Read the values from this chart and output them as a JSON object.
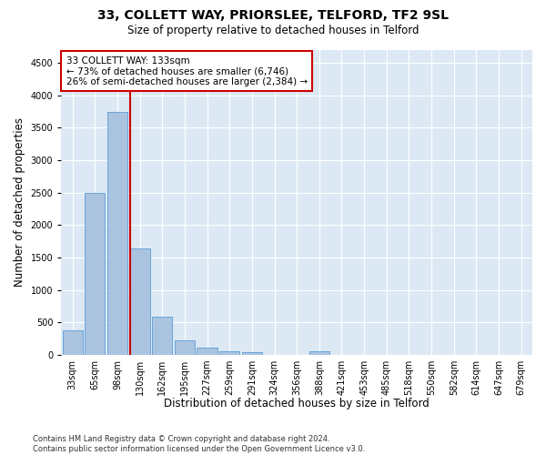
{
  "title": "33, COLLETT WAY, PRIORSLEE, TELFORD, TF2 9SL",
  "subtitle": "Size of property relative to detached houses in Telford",
  "xlabel": "Distribution of detached houses by size in Telford",
  "ylabel": "Number of detached properties",
  "bar_labels": [
    "33sqm",
    "65sqm",
    "98sqm",
    "130sqm",
    "162sqm",
    "195sqm",
    "227sqm",
    "259sqm",
    "291sqm",
    "324sqm",
    "356sqm",
    "388sqm",
    "421sqm",
    "453sqm",
    "485sqm",
    "518sqm",
    "550sqm",
    "582sqm",
    "614sqm",
    "647sqm",
    "679sqm"
  ],
  "bar_values": [
    370,
    2500,
    3750,
    1640,
    590,
    225,
    105,
    60,
    40,
    0,
    0,
    55,
    0,
    0,
    0,
    0,
    0,
    0,
    0,
    0,
    0
  ],
  "bar_color": "#aac4e0",
  "bar_edge_color": "#5b9bd5",
  "vline_color": "#cc0000",
  "annotation_text": "33 COLLETT WAY: 133sqm\n← 73% of detached houses are smaller (6,746)\n26% of semi-detached houses are larger (2,384) →",
  "annotation_box_color": "#ffffff",
  "annotation_box_edgecolor": "#cc0000",
  "ylim": [
    0,
    4700
  ],
  "yticks": [
    0,
    500,
    1000,
    1500,
    2000,
    2500,
    3000,
    3500,
    4000,
    4500
  ],
  "footer": "Contains HM Land Registry data © Crown copyright and database right 2024.\nContains public sector information licensed under the Open Government Licence v3.0.",
  "plot_bg_color": "#dce9f5",
  "title_fontsize": 10,
  "subtitle_fontsize": 8.5,
  "axis_label_fontsize": 8.5,
  "tick_fontsize": 7,
  "footer_fontsize": 6
}
